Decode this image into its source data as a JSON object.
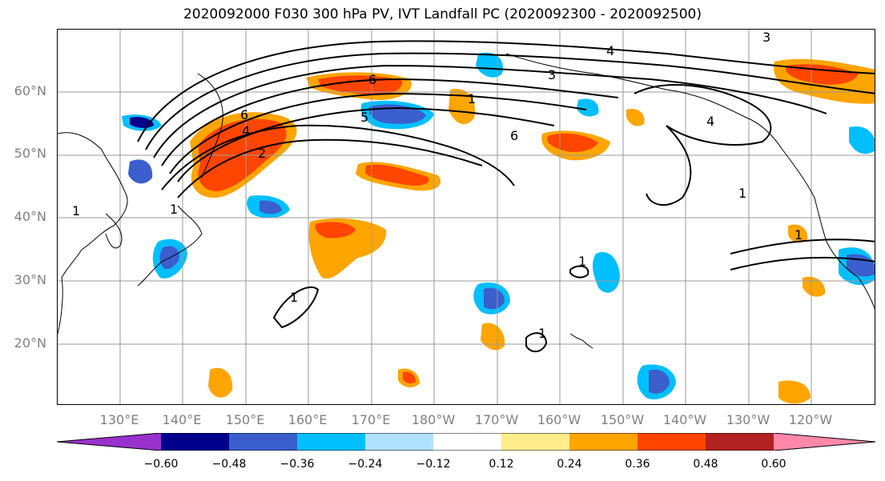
{
  "title": "2020092000 F030 300 hPa PV, IVT Landfall PC (2020092300 - 2020092500)",
  "map": {
    "latitude_labels": [
      "60°N",
      "50°N",
      "40°N",
      "30°N",
      "20°N"
    ],
    "longitude_labels": [
      "130°E",
      "140°E",
      "150°E",
      "160°E",
      "170°E",
      "180°W",
      "170°W",
      "160°W",
      "150°W",
      "140°W",
      "130°W",
      "120°W"
    ],
    "contour_labels": [
      "6",
      "4",
      "2",
      "6",
      "5",
      "4",
      "3",
      "1",
      "1",
      "1",
      "1",
      "6",
      "4",
      "3",
      "1",
      "1",
      "1",
      "1"
    ]
  },
  "colorbar": {
    "tick_labels": [
      "−0.60",
      "−0.48",
      "−0.36",
      "−0.24",
      "−0.12",
      "0.12",
      "0.24",
      "0.36",
      "0.48",
      "0.60"
    ],
    "colors": [
      "#9932CC",
      "#00008B",
      "#3A5FCD",
      "#00BFFF",
      "#B0E2FF",
      "#FFFFFF",
      "#FFEC8B",
      "#FFA500",
      "#FF4500",
      "#B22222",
      "#FF88AA"
    ]
  }
}
